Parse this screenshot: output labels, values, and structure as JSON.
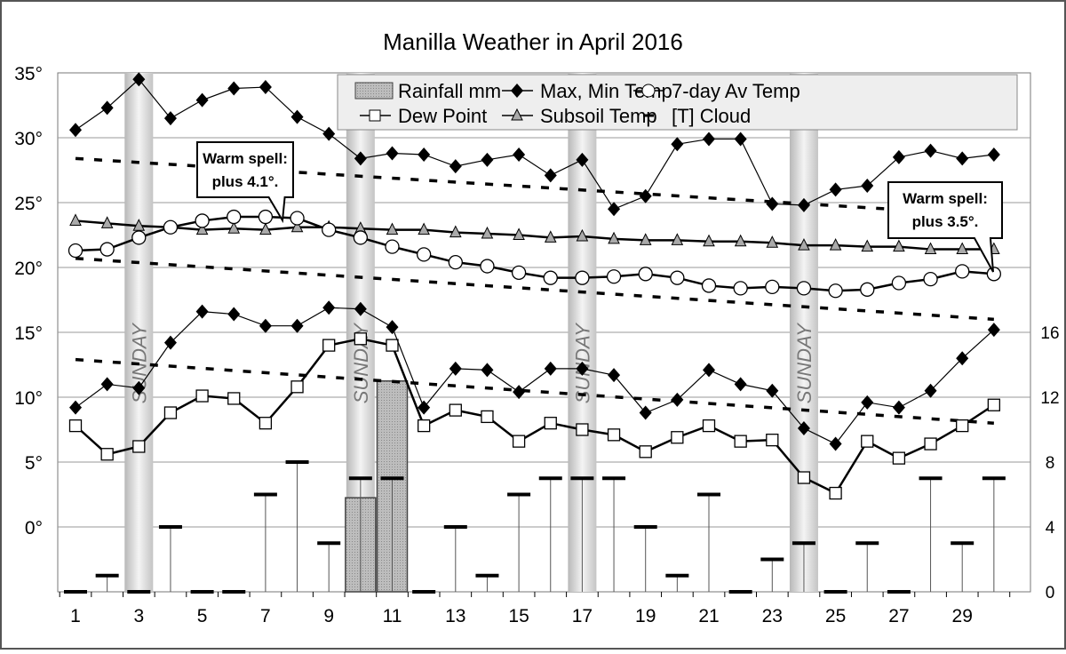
{
  "chart_data": {
    "type": "line",
    "title": "Manilla Weather in April 2016",
    "x": [
      1,
      2,
      3,
      4,
      5,
      6,
      7,
      8,
      9,
      10,
      11,
      12,
      13,
      14,
      15,
      16,
      17,
      18,
      19,
      20,
      21,
      22,
      23,
      24,
      25,
      26,
      27,
      28,
      29,
      30
    ],
    "x_tick_labels": [
      "1",
      "3",
      "5",
      "7",
      "9",
      "11",
      "13",
      "15",
      "17",
      "19",
      "21",
      "23",
      "25",
      "27",
      "29"
    ],
    "y_left": {
      "range": [
        -5,
        35
      ],
      "tick_labels": [
        "0°",
        "5°",
        "10°",
        "15°",
        "20°",
        "25°",
        "30°",
        "35°"
      ]
    },
    "y_right": {
      "range": [
        0,
        32
      ],
      "tick_labels": [
        "0",
        "4",
        "8",
        "12",
        "16"
      ]
    },
    "grid": true,
    "legend_placement": "top-right",
    "sundays": [
      3,
      10,
      17,
      24
    ],
    "sunday_label": "SUNDAY",
    "series": [
      {
        "name": "Rainfall mm",
        "kind": "bar",
        "axis": "right",
        "values": [
          0,
          0,
          0,
          0,
          0,
          0,
          0,
          0,
          0,
          5.8,
          13.0,
          0,
          0,
          0,
          0,
          0,
          0,
          0,
          0,
          0,
          0,
          0,
          0,
          0,
          0,
          0,
          0,
          0,
          0,
          0
        ]
      },
      {
        "name": "Max, Min Temp",
        "kind": "line-diamond",
        "axis": "left",
        "max": [
          30.6,
          32.3,
          34.5,
          31.5,
          32.9,
          33.8,
          33.9,
          31.6,
          30.3,
          28.4,
          28.8,
          28.7,
          27.8,
          28.3,
          28.7,
          27.1,
          28.3,
          24.5,
          25.5,
          29.5,
          29.9,
          29.9,
          24.9,
          24.8,
          26.0,
          26.3,
          28.5,
          29.0,
          28.4,
          28.7
        ],
        "min": [
          9.2,
          11.0,
          10.7,
          14.2,
          16.6,
          16.4,
          15.5,
          15.5,
          16.9,
          16.8,
          15.4,
          9.2,
          12.2,
          12.1,
          10.4,
          12.2,
          12.2,
          11.7,
          8.8,
          9.8,
          12.1,
          11.0,
          10.5,
          7.6,
          6.4,
          9.6,
          9.2,
          10.5,
          13.0,
          15.2
        ]
      },
      {
        "name": "7-day Av Temp",
        "kind": "line-circle",
        "axis": "left",
        "values": [
          21.3,
          21.4,
          22.3,
          23.1,
          23.6,
          23.9,
          23.9,
          23.8,
          22.9,
          22.3,
          21.6,
          21.0,
          20.4,
          20.1,
          19.6,
          19.2,
          19.2,
          19.3,
          19.5,
          19.2,
          18.6,
          18.4,
          18.5,
          18.4,
          18.2,
          18.3,
          18.8,
          19.1,
          19.7,
          19.5
        ]
      },
      {
        "name": "Dew Point",
        "kind": "line-square",
        "axis": "left",
        "values": [
          7.8,
          5.6,
          6.2,
          8.8,
          10.1,
          9.9,
          8.0,
          10.8,
          14.0,
          14.5,
          14.0,
          7.8,
          9.0,
          8.5,
          6.6,
          8.0,
          7.5,
          7.1,
          5.8,
          6.9,
          7.8,
          6.6,
          6.7,
          3.8,
          2.6,
          6.6,
          5.3,
          6.4,
          7.8,
          9.4
        ]
      },
      {
        "name": "Subsoil Temp",
        "kind": "line-triangle",
        "axis": "left",
        "values": [
          23.6,
          23.4,
          23.2,
          23.1,
          22.9,
          23.0,
          22.9,
          23.1,
          23.1,
          23.0,
          22.9,
          22.9,
          22.7,
          22.6,
          22.5,
          22.3,
          22.4,
          22.2,
          22.1,
          22.1,
          22.0,
          22.0,
          21.9,
          21.7,
          21.7,
          21.6,
          21.6,
          21.4,
          21.4,
          21.4
        ]
      },
      {
        "name": "[T] Cloud",
        "kind": "dash",
        "axis": "right",
        "values": [
          0,
          1,
          0,
          4,
          0,
          0,
          6,
          8,
          3,
          7,
          7,
          0,
          4,
          1,
          6,
          7,
          7,
          7,
          4,
          1,
          6,
          0,
          2,
          3,
          0,
          3,
          0,
          7,
          3,
          7
        ]
      }
    ],
    "trend_lines": [
      {
        "kind": "dashed",
        "axis": "left",
        "start": 28.4,
        "end": 24.0
      },
      {
        "kind": "dashed",
        "axis": "left",
        "start": 20.7,
        "end": 16.0
      },
      {
        "kind": "dashed",
        "axis": "left",
        "start": 12.9,
        "end": 8.0
      }
    ],
    "annotations": [
      {
        "text_line1": "Warm spell:",
        "text_line2": "plus 4.1°.",
        "points_to_day": 7.5
      },
      {
        "text_line1": "Warm spell:",
        "text_line2": "plus 3.5°.",
        "points_to_day": 30
      }
    ]
  }
}
